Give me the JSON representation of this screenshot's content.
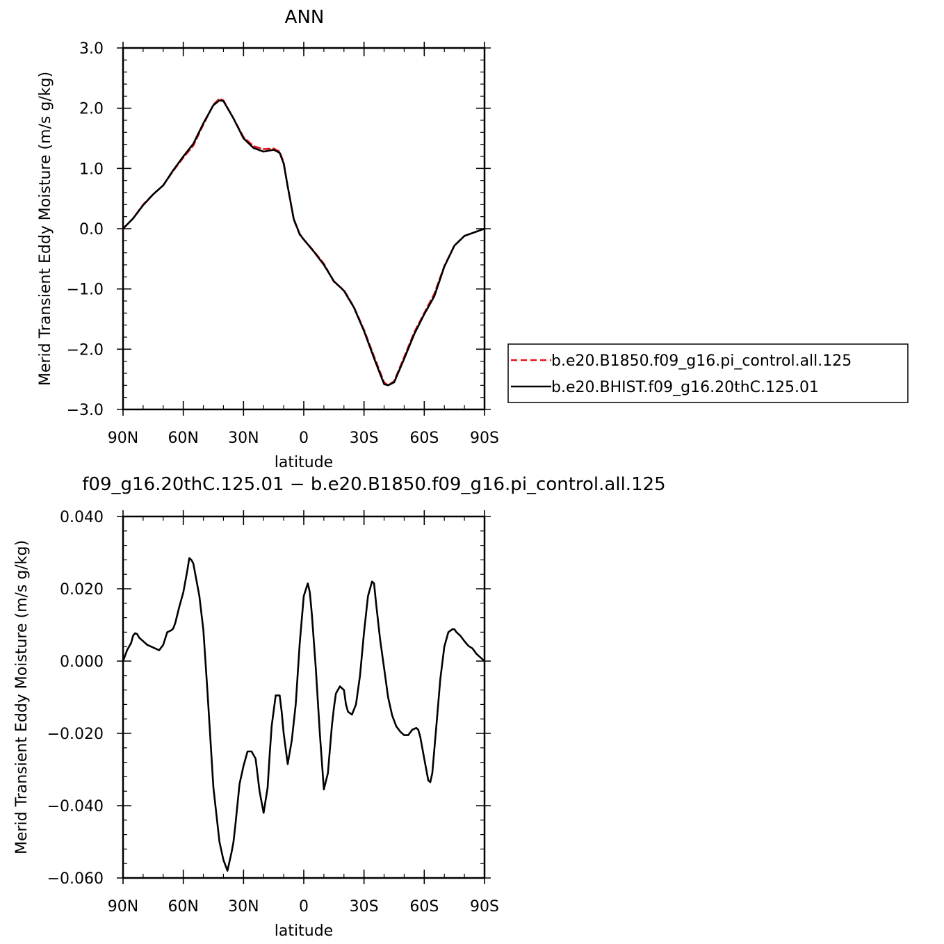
{
  "chart_data": [
    {
      "type": "line",
      "title": "ANN",
      "xlabel": "latitude",
      "ylabel": "Merid Transient Eddy Moisture (m/s g/kg)",
      "xlim": [
        90,
        -90
      ],
      "ylim": [
        -3.0,
        3.0
      ],
      "xticks": [
        90,
        60,
        30,
        0,
        -30,
        -60,
        -90
      ],
      "xtick_labels": [
        "90N",
        "60N",
        "30N",
        "0",
        "30S",
        "60S",
        "90S"
      ],
      "yticks": [
        -3.0,
        -2.0,
        -1.0,
        0.0,
        1.0,
        2.0,
        3.0
      ],
      "ytick_labels": [
        "−3.0",
        "−2.0",
        "−1.0",
        "0.0",
        "1.0",
        "2.0",
        "3.0"
      ],
      "legend": {
        "placement": "right, outside plot"
      },
      "x": [
        90,
        85,
        80,
        75,
        70,
        65,
        60,
        55,
        50,
        45,
        42,
        40,
        35,
        30,
        25,
        20,
        15,
        12,
        10,
        8,
        5,
        2,
        0,
        -5,
        -10,
        -15,
        -20,
        -25,
        -30,
        -35,
        -38,
        -40,
        -42,
        -45,
        -50,
        -55,
        -60,
        -65,
        -70,
        -75,
        -80,
        -85,
        -90
      ],
      "series": [
        {
          "name": "b.e20.B1850.f09_g16.pi_control.all.125",
          "color": "#e8121a",
          "dash": "dashed",
          "values": [
            0.0,
            0.17,
            0.4,
            0.57,
            0.72,
            0.96,
            1.18,
            1.38,
            1.73,
            2.06,
            2.16,
            2.13,
            1.83,
            1.52,
            1.37,
            1.32,
            1.33,
            1.28,
            1.1,
            0.7,
            0.15,
            -0.1,
            -0.18,
            -0.37,
            -0.58,
            -0.88,
            -1.02,
            -1.3,
            -1.68,
            -2.12,
            -2.38,
            -2.55,
            -2.6,
            -2.53,
            -2.13,
            -1.72,
            -1.4,
            -1.08,
            -0.62,
            -0.28,
            -0.12,
            -0.06,
            0.0
          ]
        },
        {
          "name": "b.e20.BHIST.f09_g16.20thC.125.01",
          "color": "#000000",
          "dash": "solid",
          "values": [
            0.0,
            0.17,
            0.39,
            0.57,
            0.72,
            0.97,
            1.2,
            1.41,
            1.75,
            2.05,
            2.13,
            2.12,
            1.83,
            1.5,
            1.34,
            1.28,
            1.31,
            1.26,
            1.08,
            0.7,
            0.16,
            -0.09,
            -0.18,
            -0.38,
            -0.6,
            -0.87,
            -1.03,
            -1.31,
            -1.7,
            -2.15,
            -2.41,
            -2.58,
            -2.6,
            -2.55,
            -2.16,
            -1.75,
            -1.42,
            -1.12,
            -0.63,
            -0.28,
            -0.12,
            -0.06,
            0.0
          ]
        }
      ]
    },
    {
      "type": "line",
      "title": "f09_g16.20thC.125.01 − b.e20.B1850.f09_g16.pi_control.all.125",
      "xlabel": "latitude",
      "ylabel": "Merid Transient Eddy Moisture (m/s g/kg)",
      "xlim": [
        90,
        -90
      ],
      "ylim": [
        -0.06,
        0.04
      ],
      "xticks": [
        90,
        60,
        30,
        0,
        -30,
        -60,
        -90
      ],
      "xtick_labels": [
        "90N",
        "60N",
        "30N",
        "0",
        "30S",
        "60S",
        "90S"
      ],
      "yticks": [
        -0.06,
        -0.04,
        -0.02,
        0.0,
        0.02,
        0.04
      ],
      "ytick_labels": [
        "−0.060",
        "−0.040",
        "−0.020",
        "0.000",
        "0.020",
        "0.040"
      ],
      "x": [
        90,
        88,
        86,
        85,
        84,
        83,
        82,
        81,
        80,
        78,
        76,
        74,
        72,
        70,
        68,
        66,
        65,
        64,
        62,
        60,
        58,
        57,
        56,
        55,
        54,
        52,
        50,
        48,
        45,
        42,
        40,
        38,
        36,
        35,
        34,
        32,
        30,
        28,
        26,
        24,
        22,
        20,
        18,
        17,
        16,
        14,
        12,
        11,
        10,
        8,
        6,
        4,
        2,
        0,
        -2,
        -3,
        -4,
        -6,
        -8,
        -10,
        -12,
        -14,
        -15,
        -16,
        -18,
        -20,
        -21,
        -22,
        -24,
        -26,
        -28,
        -30,
        -32,
        -34,
        -35,
        -36,
        -38,
        -40,
        -42,
        -44,
        -46,
        -48,
        -50,
        -52,
        -54,
        -56,
        -57,
        -58,
        -60,
        -62,
        -63,
        -64,
        -66,
        -68,
        -70,
        -72,
        -74,
        -75,
        -76,
        -78,
        -80,
        -82,
        -84,
        -86,
        -88,
        -90
      ],
      "series": [
        {
          "name": "",
          "color": "#000000",
          "dash": "solid",
          "values": [
            0.0,
            0.003,
            0.005,
            0.007,
            0.0077,
            0.0075,
            0.0065,
            0.006,
            0.0055,
            0.0045,
            0.004,
            0.0035,
            0.003,
            0.0045,
            0.008,
            0.0085,
            0.009,
            0.0105,
            0.015,
            0.019,
            0.025,
            0.0285,
            0.028,
            0.027,
            0.024,
            0.018,
            0.0085,
            -0.008,
            -0.035,
            -0.05,
            -0.055,
            -0.058,
            -0.053,
            -0.05,
            -0.045,
            -0.034,
            -0.029,
            -0.025,
            -0.025,
            -0.027,
            -0.036,
            -0.042,
            -0.035,
            -0.026,
            -0.018,
            -0.0095,
            -0.0095,
            -0.014,
            -0.02,
            -0.0285,
            -0.022,
            -0.012,
            0.005,
            0.018,
            0.0215,
            0.019,
            0.013,
            -0.002,
            -0.02,
            -0.0355,
            -0.031,
            -0.018,
            -0.013,
            -0.009,
            -0.007,
            -0.008,
            -0.012,
            -0.014,
            -0.0148,
            -0.012,
            -0.004,
            0.008,
            0.018,
            0.022,
            0.0215,
            0.016,
            0.006,
            -0.002,
            -0.01,
            -0.015,
            -0.018,
            -0.0195,
            -0.0205,
            -0.0205,
            -0.019,
            -0.0185,
            -0.019,
            -0.021,
            -0.027,
            -0.033,
            -0.0335,
            -0.031,
            -0.018,
            -0.005,
            0.004,
            0.008,
            0.0088,
            0.0088,
            0.008,
            0.007,
            0.0055,
            0.0042,
            0.0035,
            0.002,
            0.001,
            0.0
          ]
        }
      ]
    }
  ]
}
